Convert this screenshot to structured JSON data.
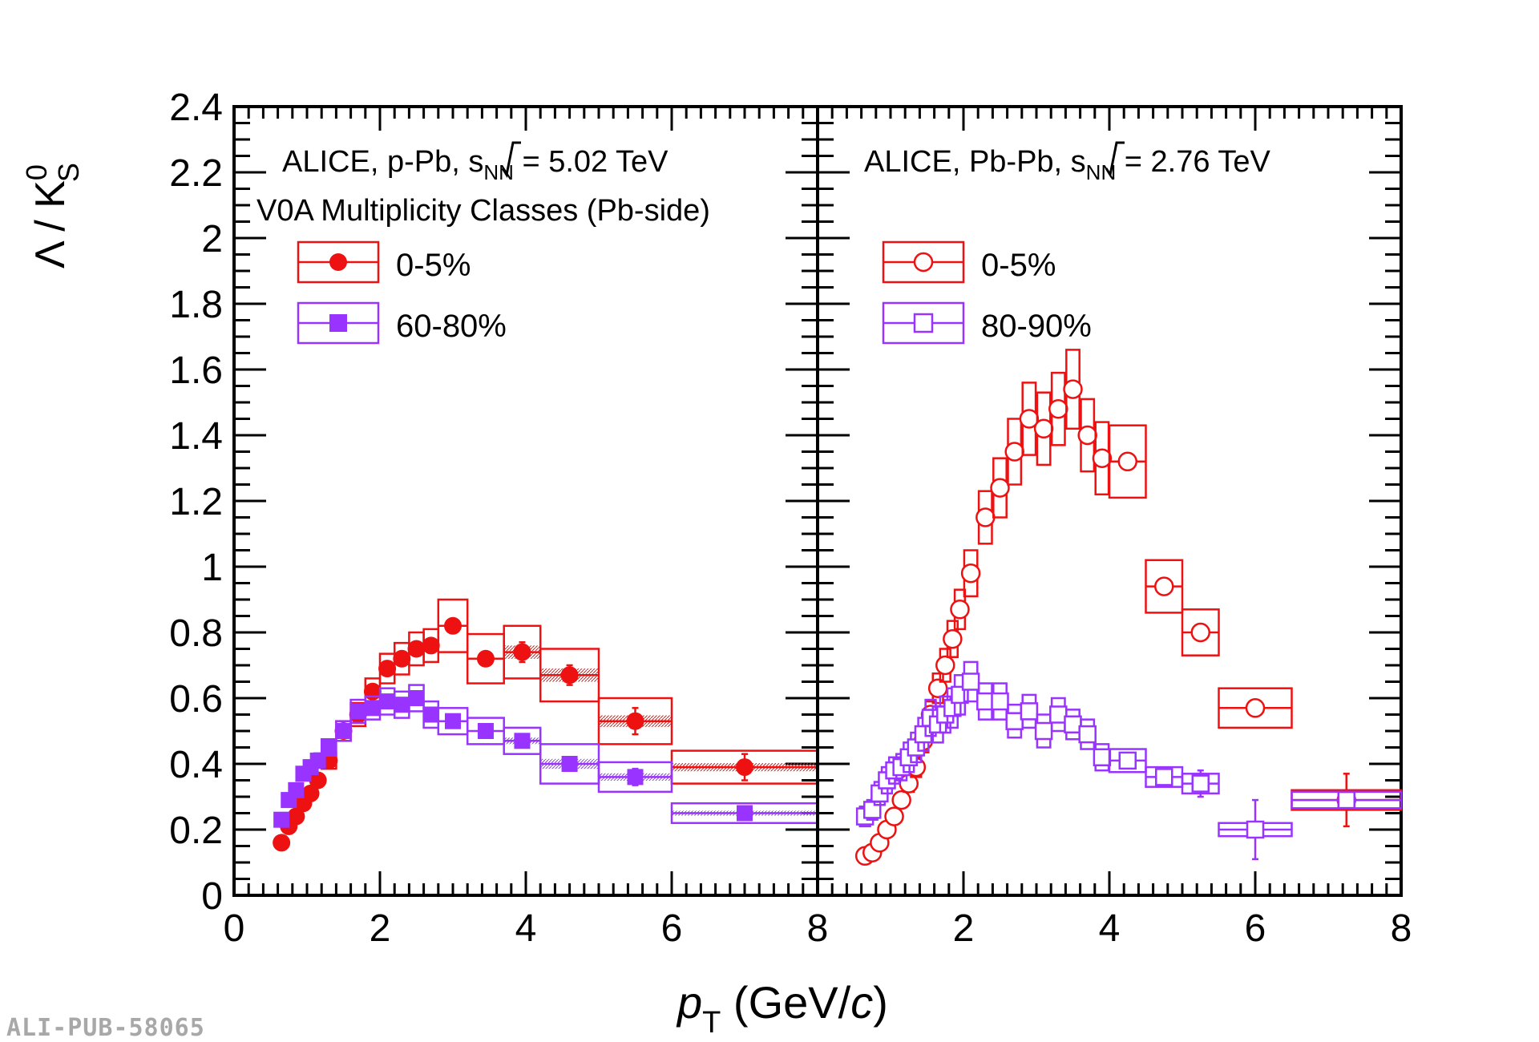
{
  "figure_id": "ALI-PUB-58065",
  "colors": {
    "red": "#ee1111",
    "purple": "#9933ff",
    "axis": "#000000",
    "watermark": "#a8a8a8"
  },
  "axes": {
    "ylabel_main": "Λ / K",
    "ylabel_sup": "0",
    "ylabel_sub": "S",
    "xlabel_main": "p",
    "xlabel_sub": "T",
    "xlabel_unit_open": " (GeV/",
    "xlabel_unit_c": "c",
    "xlabel_unit_close": ")",
    "yticks": [
      "0",
      "0.2",
      "0.4",
      "0.6",
      "0.8",
      "1",
      "1.2",
      "1.4",
      "1.6",
      "1.8",
      "2",
      "2.2",
      "2.4"
    ],
    "xticks_left": [
      "0",
      "2",
      "4",
      "6",
      "8"
    ],
    "xticks_right": [
      "0",
      "2",
      "4",
      "6",
      "8"
    ],
    "ylim": [
      0,
      2.4
    ],
    "xlim": [
      0,
      8
    ]
  },
  "chart_data": [
    {
      "type": "scatter",
      "panel": "left",
      "title_prefix": "ALICE, p-Pb, ",
      "title_sqrt": "s",
      "title_sub": "NN",
      "title_suffix": " = 5.02 TeV",
      "subtitle": "V0A Multiplicity Classes (Pb-side)",
      "xlabel": "pT (GeV/c)",
      "ylabel": "Λ / K0S",
      "xlim": [
        0,
        8
      ],
      "ylim": [
        0,
        2.4
      ],
      "legend": [
        {
          "label": "0-5%",
          "marker": "filled-circle",
          "color": "#ee1111"
        },
        {
          "label": "60-80%",
          "marker": "filled-square",
          "color": "#9933ff"
        }
      ],
      "series": [
        {
          "name": "0-5%",
          "marker": "filled-circle",
          "color": "#ee1111",
          "points": [
            {
              "x": 0.65,
              "y": 0.16,
              "xlo": 0.6,
              "xhi": 0.7,
              "sys": 0.01
            },
            {
              "x": 0.75,
              "y": 0.21,
              "xlo": 0.7,
              "xhi": 0.8,
              "sys": 0.012
            },
            {
              "x": 0.85,
              "y": 0.24,
              "xlo": 0.8,
              "xhi": 0.9,
              "sys": 0.014
            },
            {
              "x": 0.95,
              "y": 0.28,
              "xlo": 0.9,
              "xhi": 1.0,
              "sys": 0.016
            },
            {
              "x": 1.05,
              "y": 0.31,
              "xlo": 1.0,
              "xhi": 1.1,
              "sys": 0.018
            },
            {
              "x": 1.15,
              "y": 0.35,
              "xlo": 1.1,
              "xhi": 1.2,
              "sys": 0.02
            },
            {
              "x": 1.3,
              "y": 0.41,
              "xlo": 1.2,
              "xhi": 1.4,
              "sys": 0.025
            },
            {
              "x": 1.5,
              "y": 0.5,
              "xlo": 1.4,
              "xhi": 1.6,
              "sys": 0.03
            },
            {
              "x": 1.7,
              "y": 0.55,
              "xlo": 1.6,
              "xhi": 1.8,
              "sys": 0.035
            },
            {
              "x": 1.9,
              "y": 0.62,
              "xlo": 1.8,
              "xhi": 2.0,
              "sys": 0.04
            },
            {
              "x": 2.1,
              "y": 0.69,
              "xlo": 2.0,
              "xhi": 2.2,
              "sys": 0.045
            },
            {
              "x": 2.3,
              "y": 0.72,
              "xlo": 2.2,
              "xhi": 2.4,
              "sys": 0.048
            },
            {
              "x": 2.5,
              "y": 0.75,
              "xlo": 2.4,
              "xhi": 2.6,
              "sys": 0.05
            },
            {
              "x": 2.7,
              "y": 0.76,
              "xlo": 2.6,
              "xhi": 2.8,
              "sys": 0.05
            },
            {
              "x": 3.0,
              "y": 0.82,
              "xlo": 2.8,
              "xhi": 3.2,
              "sys": 0.08
            },
            {
              "x": 3.45,
              "y": 0.72,
              "xlo": 3.2,
              "xhi": 3.7,
              "sys": 0.075
            },
            {
              "x": 3.95,
              "y": 0.74,
              "xlo": 3.7,
              "xhi": 4.2,
              "sys": 0.08,
              "stat": 0.03
            },
            {
              "x": 4.6,
              "y": 0.67,
              "xlo": 4.2,
              "xhi": 5.0,
              "sys": 0.08,
              "stat": 0.03
            },
            {
              "x": 5.5,
              "y": 0.53,
              "xlo": 5.0,
              "xhi": 6.0,
              "sys": 0.07,
              "stat": 0.04
            },
            {
              "x": 7.0,
              "y": 0.39,
              "xlo": 6.0,
              "xhi": 8.0,
              "sys": 0.05,
              "stat": 0.04
            }
          ]
        },
        {
          "name": "60-80%",
          "marker": "filled-square",
          "color": "#9933ff",
          "points": [
            {
              "x": 0.65,
              "y": 0.23,
              "xlo": 0.6,
              "xhi": 0.7,
              "sys": 0.012
            },
            {
              "x": 0.75,
              "y": 0.29,
              "xlo": 0.7,
              "xhi": 0.8,
              "sys": 0.014
            },
            {
              "x": 0.85,
              "y": 0.32,
              "xlo": 0.8,
              "xhi": 0.9,
              "sys": 0.016
            },
            {
              "x": 0.95,
              "y": 0.37,
              "xlo": 0.9,
              "xhi": 1.0,
              "sys": 0.018
            },
            {
              "x": 1.05,
              "y": 0.39,
              "xlo": 1.0,
              "xhi": 1.1,
              "sys": 0.02
            },
            {
              "x": 1.15,
              "y": 0.41,
              "xlo": 1.1,
              "xhi": 1.2,
              "sys": 0.022
            },
            {
              "x": 1.3,
              "y": 0.45,
              "xlo": 1.2,
              "xhi": 1.4,
              "sys": 0.025
            },
            {
              "x": 1.5,
              "y": 0.5,
              "xlo": 1.4,
              "xhi": 1.6,
              "sys": 0.03
            },
            {
              "x": 1.7,
              "y": 0.56,
              "xlo": 1.6,
              "xhi": 1.8,
              "sys": 0.035
            },
            {
              "x": 1.9,
              "y": 0.57,
              "xlo": 1.8,
              "xhi": 2.0,
              "sys": 0.035
            },
            {
              "x": 2.1,
              "y": 0.59,
              "xlo": 2.0,
              "xhi": 2.2,
              "sys": 0.04
            },
            {
              "x": 2.3,
              "y": 0.58,
              "xlo": 2.2,
              "xhi": 2.4,
              "sys": 0.04
            },
            {
              "x": 2.5,
              "y": 0.6,
              "xlo": 2.4,
              "xhi": 2.6,
              "sys": 0.04
            },
            {
              "x": 2.7,
              "y": 0.55,
              "xlo": 2.6,
              "xhi": 2.8,
              "sys": 0.04
            },
            {
              "x": 3.0,
              "y": 0.53,
              "xlo": 2.8,
              "xhi": 3.2,
              "sys": 0.04
            },
            {
              "x": 3.45,
              "y": 0.5,
              "xlo": 3.2,
              "xhi": 3.7,
              "sys": 0.04
            },
            {
              "x": 3.95,
              "y": 0.47,
              "xlo": 3.7,
              "xhi": 4.2,
              "sys": 0.04,
              "stat": 0.02
            },
            {
              "x": 4.6,
              "y": 0.4,
              "xlo": 4.2,
              "xhi": 5.0,
              "sys": 0.06,
              "stat": 0.02
            },
            {
              "x": 5.5,
              "y": 0.36,
              "xlo": 5.0,
              "xhi": 6.0,
              "sys": 0.045,
              "stat": 0.025
            },
            {
              "x": 7.0,
              "y": 0.25,
              "xlo": 6.0,
              "xhi": 8.0,
              "sys": 0.03,
              "stat": 0.02
            }
          ]
        }
      ]
    },
    {
      "type": "scatter",
      "panel": "right",
      "title_prefix": "ALICE, Pb-Pb, ",
      "title_sqrt": "s",
      "title_sub": "NN",
      "title_suffix": " = 2.76 TeV",
      "xlabel": "pT (GeV/c)",
      "ylabel": "Λ / K0S",
      "xlim": [
        0,
        8
      ],
      "ylim": [
        0,
        2.4
      ],
      "legend": [
        {
          "label": "0-5%",
          "marker": "open-circle",
          "color": "#ee1111"
        },
        {
          "label": "80-90%",
          "marker": "open-square",
          "color": "#9933ff"
        }
      ],
      "series": [
        {
          "name": "0-5%",
          "marker": "open-circle",
          "color": "#ee1111",
          "points": [
            {
              "x": 0.65,
              "y": 0.12,
              "w": 0.07,
              "sys": 0.01
            },
            {
              "x": 0.75,
              "y": 0.13,
              "w": 0.07,
              "sys": 0.01
            },
            {
              "x": 0.85,
              "y": 0.16,
              "w": 0.07,
              "sys": 0.012
            },
            {
              "x": 0.95,
              "y": 0.2,
              "w": 0.07,
              "sys": 0.014
            },
            {
              "x": 1.05,
              "y": 0.24,
              "w": 0.07,
              "sys": 0.016
            },
            {
              "x": 1.15,
              "y": 0.29,
              "w": 0.07,
              "sys": 0.02
            },
            {
              "x": 1.25,
              "y": 0.34,
              "w": 0.07,
              "sys": 0.025
            },
            {
              "x": 1.35,
              "y": 0.39,
              "w": 0.07,
              "sys": 0.03
            },
            {
              "x": 1.45,
              "y": 0.47,
              "w": 0.07,
              "sys": 0.035
            },
            {
              "x": 1.55,
              "y": 0.55,
              "w": 0.07,
              "sys": 0.04
            },
            {
              "x": 1.65,
              "y": 0.63,
              "w": 0.07,
              "sys": 0.045
            },
            {
              "x": 1.75,
              "y": 0.7,
              "w": 0.07,
              "sys": 0.05
            },
            {
              "x": 1.85,
              "y": 0.78,
              "w": 0.07,
              "sys": 0.055
            },
            {
              "x": 1.95,
              "y": 0.87,
              "w": 0.07,
              "sys": 0.06
            },
            {
              "x": 2.1,
              "y": 0.98,
              "w": 0.09,
              "sys": 0.07
            },
            {
              "x": 2.3,
              "y": 1.15,
              "w": 0.09,
              "sys": 0.08
            },
            {
              "x": 2.5,
              "y": 1.24,
              "w": 0.09,
              "sys": 0.09
            },
            {
              "x": 2.7,
              "y": 1.35,
              "w": 0.09,
              "sys": 0.1
            },
            {
              "x": 2.9,
              "y": 1.45,
              "w": 0.09,
              "sys": 0.11
            },
            {
              "x": 3.1,
              "y": 1.42,
              "w": 0.09,
              "sys": 0.11
            },
            {
              "x": 3.3,
              "y": 1.48,
              "w": 0.09,
              "sys": 0.11
            },
            {
              "x": 3.5,
              "y": 1.54,
              "w": 0.09,
              "sys": 0.12
            },
            {
              "x": 3.7,
              "y": 1.4,
              "w": 0.09,
              "sys": 0.11
            },
            {
              "x": 3.9,
              "y": 1.33,
              "w": 0.09,
              "sys": 0.11
            },
            {
              "x": 4.25,
              "y": 1.32,
              "w": 0.25,
              "sys": 0.11
            },
            {
              "x": 4.75,
              "y": 0.94,
              "w": 0.25,
              "sys": 0.08
            },
            {
              "x": 5.25,
              "y": 0.8,
              "w": 0.25,
              "sys": 0.07
            },
            {
              "x": 6.0,
              "y": 0.57,
              "w": 0.5,
              "sys": 0.06
            },
            {
              "x": 7.25,
              "y": 0.29,
              "w": 0.75,
              "sys": 0.03,
              "stat": 0.08
            }
          ]
        },
        {
          "name": "80-90%",
          "marker": "open-square",
          "color": "#9933ff",
          "points": [
            {
              "x": 0.65,
              "y": 0.24,
              "w": 0.07,
              "sys": 0.03
            },
            {
              "x": 0.75,
              "y": 0.26,
              "w": 0.07,
              "sys": 0.03
            },
            {
              "x": 0.85,
              "y": 0.31,
              "w": 0.07,
              "sys": 0.035
            },
            {
              "x": 0.95,
              "y": 0.35,
              "w": 0.07,
              "sys": 0.04
            },
            {
              "x": 1.05,
              "y": 0.38,
              "w": 0.07,
              "sys": 0.04
            },
            {
              "x": 1.15,
              "y": 0.39,
              "w": 0.07,
              "sys": 0.04
            },
            {
              "x": 1.25,
              "y": 0.42,
              "w": 0.07,
              "sys": 0.045
            },
            {
              "x": 1.35,
              "y": 0.45,
              "w": 0.07,
              "sys": 0.045
            },
            {
              "x": 1.45,
              "y": 0.49,
              "w": 0.07,
              "sys": 0.05
            },
            {
              "x": 1.55,
              "y": 0.54,
              "w": 0.07,
              "sys": 0.055
            },
            {
              "x": 1.65,
              "y": 0.52,
              "w": 0.07,
              "sys": 0.055
            },
            {
              "x": 1.75,
              "y": 0.55,
              "w": 0.07,
              "sys": 0.055
            },
            {
              "x": 1.85,
              "y": 0.57,
              "w": 0.07,
              "sys": 0.06
            },
            {
              "x": 1.95,
              "y": 0.61,
              "w": 0.07,
              "sys": 0.06
            },
            {
              "x": 2.1,
              "y": 0.65,
              "w": 0.09,
              "sys": 0.06
            },
            {
              "x": 2.3,
              "y": 0.59,
              "w": 0.09,
              "sys": 0.055
            },
            {
              "x": 2.5,
              "y": 0.59,
              "w": 0.09,
              "sys": 0.055
            },
            {
              "x": 2.7,
              "y": 0.53,
              "w": 0.09,
              "sys": 0.05
            },
            {
              "x": 2.9,
              "y": 0.56,
              "w": 0.09,
              "sys": 0.05
            },
            {
              "x": 3.1,
              "y": 0.5,
              "w": 0.09,
              "sys": 0.05
            },
            {
              "x": 3.3,
              "y": 0.55,
              "w": 0.09,
              "sys": 0.05
            },
            {
              "x": 3.5,
              "y": 0.52,
              "w": 0.09,
              "sys": 0.045
            },
            {
              "x": 3.7,
              "y": 0.49,
              "w": 0.09,
              "sys": 0.045
            },
            {
              "x": 3.9,
              "y": 0.42,
              "w": 0.09,
              "sys": 0.04
            },
            {
              "x": 4.25,
              "y": 0.41,
              "w": 0.25,
              "sys": 0.035
            },
            {
              "x": 4.75,
              "y": 0.36,
              "w": 0.25,
              "sys": 0.03,
              "stat": 0.02
            },
            {
              "x": 5.25,
              "y": 0.34,
              "w": 0.25,
              "sys": 0.03,
              "stat": 0.04
            },
            {
              "x": 6.0,
              "y": 0.2,
              "w": 0.5,
              "sys": 0.02,
              "stat": 0.09
            },
            {
              "x": 7.25,
              "y": 0.29,
              "w": 0.75,
              "sys": 0.025,
              "stat": 0.02
            }
          ]
        }
      ]
    }
  ]
}
